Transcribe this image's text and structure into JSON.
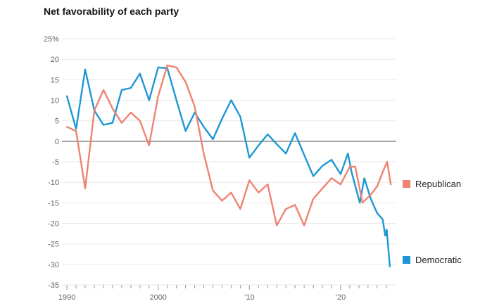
{
  "chart_data": {
    "type": "line",
    "title": "Net favorability of each party",
    "unit": "%",
    "grid": true,
    "legend_position": "right",
    "x_axis": {
      "x_min": 1989.45,
      "x_max": 2026.1,
      "tick_start": 1990,
      "tick_end": 2025,
      "labels": [
        {
          "year": 1990,
          "text": "1990"
        },
        {
          "year": 2000,
          "text": "2000"
        },
        {
          "year": 2010,
          "text": "’10"
        },
        {
          "year": 2020,
          "text": "’20"
        }
      ]
    },
    "y_axis": {
      "min": -35,
      "max": 25,
      "step": 5,
      "tick_labels": [
        "25%",
        "20",
        "15",
        "10",
        "5",
        "0",
        "-5",
        "-10",
        "-15",
        "-20",
        "-25",
        "-30",
        "-35"
      ]
    },
    "series": [
      {
        "name": "Republican",
        "color": "#ee8372",
        "points": [
          [
            1990,
            3.5
          ],
          [
            1991,
            2.5
          ],
          [
            1992,
            -11.5
          ],
          [
            1993,
            7.5
          ],
          [
            1994,
            12.5
          ],
          [
            1995,
            8
          ],
          [
            1996,
            4.5
          ],
          [
            1997,
            7
          ],
          [
            1998,
            5
          ],
          [
            1999,
            -1
          ],
          [
            2000,
            11
          ],
          [
            2001,
            18.5
          ],
          [
            2002,
            18
          ],
          [
            2003,
            14.5
          ],
          [
            2004,
            8.5
          ],
          [
            2005,
            -3
          ],
          [
            2006,
            -12
          ],
          [
            2007,
            -14.5
          ],
          [
            2008,
            -12.5
          ],
          [
            2009,
            -16.5
          ],
          [
            2010,
            -9.5
          ],
          [
            2011,
            -12.5
          ],
          [
            2012,
            -10.5
          ],
          [
            2013,
            -20.5
          ],
          [
            2014,
            -16.5
          ],
          [
            2015,
            -15.5
          ],
          [
            2016,
            -20.5
          ],
          [
            2017,
            -14
          ],
          [
            2018,
            -11.5
          ],
          [
            2019,
            -9
          ],
          [
            2020,
            -10.5
          ],
          [
            2021,
            -6.2
          ],
          [
            2021.6,
            -6.2
          ],
          [
            2022.4,
            -15
          ],
          [
            2023.3,
            -13
          ],
          [
            2024,
            -11
          ],
          [
            2024.7,
            -7
          ],
          [
            2025.1,
            -5
          ],
          [
            2025.5,
            -10.5
          ]
        ]
      },
      {
        "name": "Democratic",
        "color": "#1e97d4",
        "points": [
          [
            1990,
            11
          ],
          [
            1991,
            3
          ],
          [
            1992,
            17.5
          ],
          [
            1993,
            7.5
          ],
          [
            1994,
            4
          ],
          [
            1995,
            4.5
          ],
          [
            1996,
            12.5
          ],
          [
            1997,
            13
          ],
          [
            1998,
            16.5
          ],
          [
            1999,
            10
          ],
          [
            2000,
            18
          ],
          [
            2001,
            17.8
          ],
          [
            2002,
            10
          ],
          [
            2003,
            2.5
          ],
          [
            2004,
            7
          ],
          [
            2005,
            3.5
          ],
          [
            2006,
            0.5
          ],
          [
            2007,
            5.5
          ],
          [
            2008,
            10
          ],
          [
            2009,
            6
          ],
          [
            2010,
            -4
          ],
          [
            2011,
            -1
          ],
          [
            2012,
            1.7
          ],
          [
            2013,
            -0.7
          ],
          [
            2014,
            -3
          ],
          [
            2015,
            2
          ],
          [
            2016,
            -3.3
          ],
          [
            2017,
            -8.5
          ],
          [
            2018,
            -6
          ],
          [
            2019,
            -4.5
          ],
          [
            2020,
            -8
          ],
          [
            2020.8,
            -3
          ],
          [
            2021.2,
            -7.5
          ],
          [
            2022.1,
            -15
          ],
          [
            2022.6,
            -9
          ],
          [
            2023.3,
            -14
          ],
          [
            2024,
            -17.5
          ],
          [
            2024.6,
            -19
          ],
          [
            2024.9,
            -23
          ],
          [
            2025.05,
            -21.5
          ],
          [
            2025.4,
            -30.5
          ]
        ]
      }
    ],
    "colors": {
      "gridline": "#e9e9e9",
      "zero_line": "#7d7d7d",
      "tick": "#999999",
      "axis_label": "#666666",
      "title": "#141414",
      "legend_text": "#222222"
    }
  }
}
